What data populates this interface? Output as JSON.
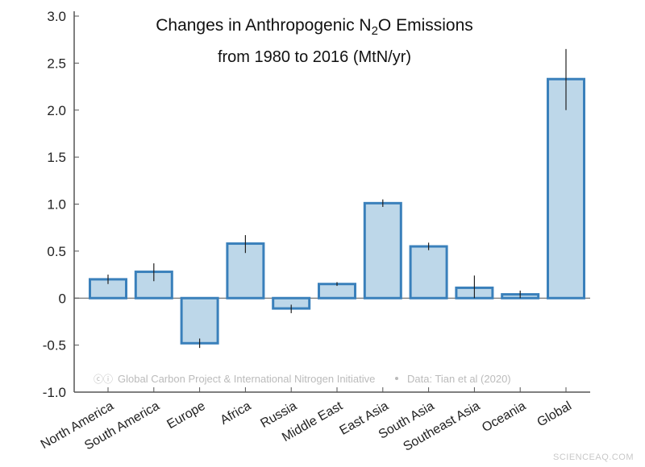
{
  "chart_data": {
    "type": "bar",
    "title_line1_pre": "Changes in Anthropogenic N",
    "title_sub": "2",
    "title_line1_post": "O Emissions",
    "title_line2": "from 1980 to 2016 (MtN/yr)",
    "xlabel": "",
    "ylabel": "",
    "ylim": [
      -1.0,
      3.0
    ],
    "yticks": [
      "-1.0",
      "-0.5",
      "0",
      "0.5",
      "1.0",
      "1.5",
      "2.0",
      "2.5",
      "3.0"
    ],
    "categories": [
      "North America",
      "South America",
      "Europe",
      "Africa",
      "Russia",
      "Middle East",
      "East Asia",
      "South Asia",
      "Southeast Asia",
      "Oceania",
      "Global"
    ],
    "values": [
      0.2,
      0.28,
      -0.48,
      0.58,
      -0.11,
      0.15,
      1.01,
      0.55,
      0.11,
      0.04,
      2.33
    ],
    "error_low": [
      0.15,
      0.18,
      -0.53,
      0.48,
      -0.16,
      0.13,
      0.97,
      0.51,
      0.0,
      0.0,
      2.0
    ],
    "error_high": [
      0.25,
      0.37,
      -0.43,
      0.67,
      -0.07,
      0.17,
      1.05,
      0.59,
      0.24,
      0.08,
      2.65
    ],
    "grid": false,
    "colors": {
      "bar_fill": "#bdd7e9",
      "bar_edge": "#3a80bb",
      "error": "#222222"
    },
    "credit": "Global Carbon Project & International Nitrogen Initiative",
    "credit_icons": "cc-by-icons",
    "data_source": "Data: Tian et al (2020)"
  },
  "watermark": "SCIENCEAQ.COM"
}
